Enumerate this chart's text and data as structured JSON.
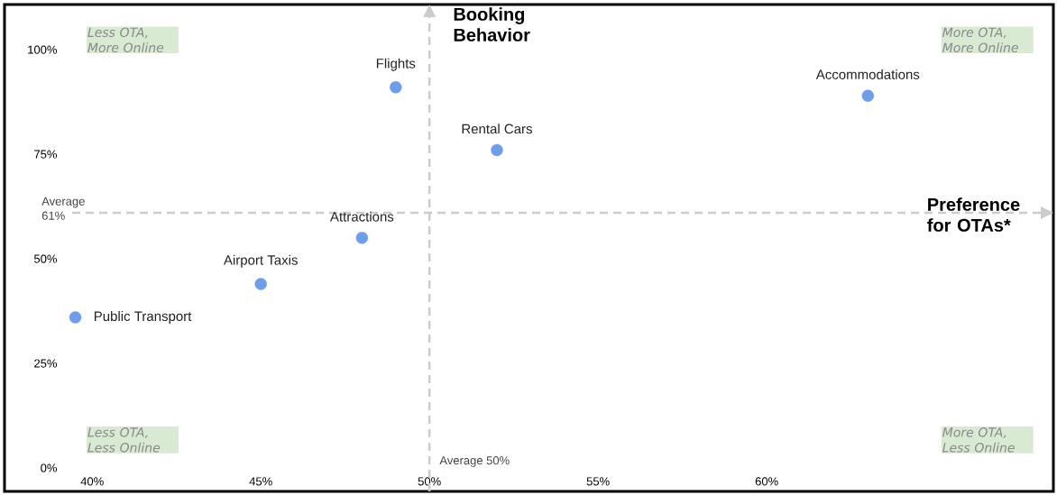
{
  "chart_data": {
    "type": "scatter",
    "xlabel": "Preference for OTAs*",
    "ylabel": "Booking Behavior",
    "x": [
      49,
      63,
      52,
      48,
      45,
      39.5
    ],
    "values": [
      91,
      89,
      76,
      55,
      44,
      36
    ],
    "color": "#6d9eeb",
    "xlim": [
      37.4,
      68.5
    ],
    "ylim": [
      -5.6,
      110.8
    ],
    "xticks": [
      {
        "value": 40,
        "label": "40%"
      },
      {
        "value": 45,
        "label": "45%"
      },
      {
        "value": 50,
        "label": "50%"
      },
      {
        "value": 55,
        "label": "55%"
      },
      {
        "value": 60,
        "label": "60%"
      }
    ],
    "yticks": [
      {
        "value": 0,
        "label": "0%"
      },
      {
        "value": 25,
        "label": "25%"
      },
      {
        "value": 50,
        "label": "50%"
      },
      {
        "value": 75,
        "label": "75%"
      },
      {
        "value": 100,
        "label": "100%"
      }
    ],
    "ref_lines": [
      {
        "axis": "y",
        "value": 61,
        "label": "Average 61%",
        "color": "#cccccc",
        "line_style": "dashed"
      },
      {
        "axis": "x",
        "value": 50,
        "label": "Average 50%",
        "color": "#cccccc",
        "line_style": "dashed"
      }
    ],
    "annotations": [
      "Less OTA, More Online",
      "More OTA, More Online",
      "Less OTA, Less Online",
      "More OTA, Less Online",
      {
        "text": "Flights",
        "x": 49,
        "y": 91
      },
      {
        "text": "Accommodations",
        "x": 63,
        "y": 89
      },
      {
        "text": "Rental Cars",
        "x": 52,
        "y": 76
      },
      {
        "text": "Attractions",
        "x": 48,
        "y": 55
      },
      {
        "text": "Airport Taxis",
        "x": 45,
        "y": 44
      },
      {
        "text": "Public Transport",
        "x": 39.5,
        "y": 36
      }
    ]
  }
}
